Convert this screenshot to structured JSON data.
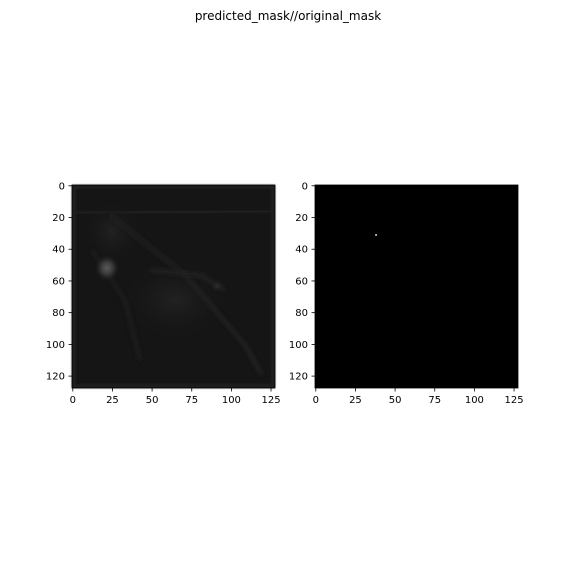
{
  "figure": {
    "suptitle": "predicted_mask//original_mask"
  },
  "chart_data": [
    {
      "type": "heatmap",
      "title": "",
      "xlabel": "",
      "ylabel": "",
      "xlim": [
        -0.5,
        127.5
      ],
      "ylim": [
        127.5,
        -0.5
      ],
      "xticks": [
        0,
        25,
        50,
        75,
        100,
        125
      ],
      "yticks": [
        0,
        20,
        40,
        60,
        80,
        100,
        120
      ],
      "colormap": "gray",
      "description_values": {
        "background_intensity": 0.07,
        "bright_blobs": [
          {
            "x": 22,
            "y": 52,
            "intensity": 0.32
          },
          {
            "x": 92,
            "y": 63,
            "intensity": 0.14
          }
        ]
      }
    },
    {
      "type": "heatmap",
      "title": "",
      "xlabel": "",
      "ylabel": "",
      "xlim": [
        -0.5,
        127.5
      ],
      "ylim": [
        127.5,
        -0.5
      ],
      "xticks": [
        0,
        25,
        50,
        75,
        100,
        125
      ],
      "yticks": [
        0,
        20,
        40,
        60,
        80,
        100,
        120
      ],
      "colormap": "gray",
      "description_values": {
        "background_intensity": 0.0,
        "bright_pixels": [
          {
            "x": 38,
            "y": 31,
            "intensity": 1.0
          }
        ]
      }
    }
  ],
  "colors": {
    "axis": "#000000",
    "background": "#ffffff"
  }
}
